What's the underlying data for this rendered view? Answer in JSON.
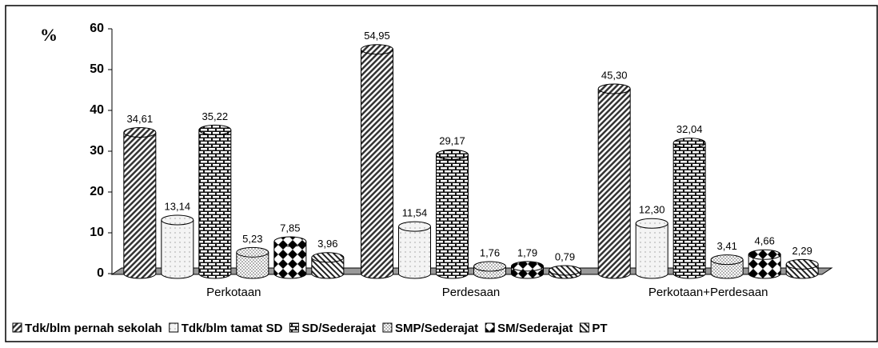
{
  "chart_data": {
    "type": "bar",
    "y_label": "%",
    "categories": [
      "Perkotaan",
      "Perdesaan",
      "Perkotaan+Perdesaan"
    ],
    "series": [
      {
        "name": "Tdk/blm pernah sekolah",
        "color": "#888888",
        "values": [
          34.61,
          54.95,
          45.3
        ],
        "value_labels": [
          "34,61",
          "54,95",
          "45,30"
        ]
      },
      {
        "name": "Tdk/blm tamat SD",
        "color": "#eeeeee",
        "values": [
          13.14,
          11.54,
          12.3
        ],
        "value_labels": [
          "13,14",
          "11,54",
          "12,30"
        ]
      },
      {
        "name": "SD/Sederajat",
        "color": "#222222",
        "values": [
          35.22,
          29.17,
          32.04
        ],
        "value_labels": [
          "35,22",
          "29,17",
          "32,04"
        ]
      },
      {
        "name": "SMP/Sederajat",
        "color": "#dddddd",
        "values": [
          5.23,
          1.76,
          3.41
        ],
        "value_labels": [
          "5,23",
          "1,76",
          "3,41"
        ]
      },
      {
        "name": "SM/Sederajat",
        "color": "#444444",
        "values": [
          7.85,
          1.79,
          4.66
        ],
        "value_labels": [
          "7,85",
          "1,79",
          "4,66"
        ]
      },
      {
        "name": "PT",
        "color": "#999999",
        "values": [
          3.96,
          0.79,
          2.29
        ],
        "value_labels": [
          "3,96",
          "0,79",
          "2,29"
        ]
      }
    ],
    "ylim": [
      0,
      60
    ],
    "yticks": [
      0,
      10,
      20,
      30,
      40,
      50,
      60
    ]
  }
}
